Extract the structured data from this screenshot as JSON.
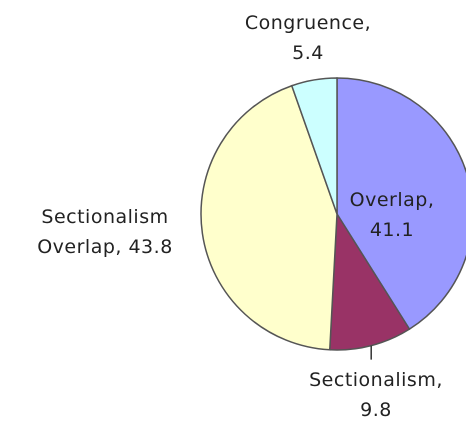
{
  "chart_data": {
    "type": "pie",
    "values": [
      41.1,
      9.8,
      43.8,
      5.4
    ],
    "value_labels": [
      "Overlap,\n41.1",
      "Sectionalism,\n9.8",
      "Sectionalism\nOverlap, 43.8",
      "Congruence,\n5.4"
    ],
    "colors": [
      "#9999ff",
      "#993366",
      "#ffffcc",
      "#ccffff"
    ]
  }
}
